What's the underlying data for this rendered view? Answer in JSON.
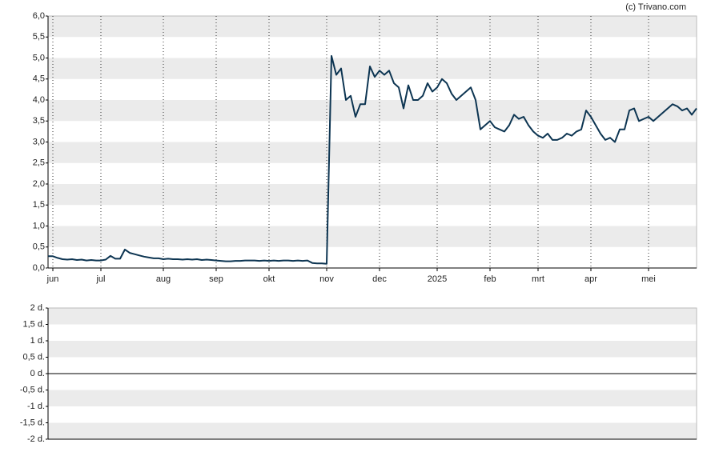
{
  "watermark": "(c) Trivano.com",
  "chart_data": [
    {
      "type": "line",
      "color": "#0d3552",
      "grid": true,
      "ylim": [
        0,
        6
      ],
      "yticks": [
        {
          "value": 0,
          "label": "0,0"
        },
        {
          "value": 0.5,
          "label": "0,5"
        },
        {
          "value": 1,
          "label": "1,0"
        },
        {
          "value": 1.5,
          "label": "1,5"
        },
        {
          "value": 2,
          "label": "2,0"
        },
        {
          "value": 2.5,
          "label": "2,5"
        },
        {
          "value": 3,
          "label": "3,0"
        },
        {
          "value": 3.5,
          "label": "3,5"
        },
        {
          "value": 4,
          "label": "4,0"
        },
        {
          "value": 4.5,
          "label": "4,5"
        },
        {
          "value": 5,
          "label": "5,0"
        },
        {
          "value": 5.5,
          "label": "5,5"
        },
        {
          "value": 6,
          "label": "6,0"
        }
      ],
      "categories": [
        null,
        "jun",
        null,
        null,
        null,
        null,
        null,
        null,
        null,
        null,
        null,
        "jul",
        null,
        null,
        null,
        null,
        null,
        null,
        null,
        null,
        null,
        null,
        null,
        null,
        "aug",
        null,
        null,
        null,
        null,
        null,
        null,
        null,
        null,
        null,
        null,
        "sep",
        null,
        null,
        null,
        null,
        null,
        null,
        null,
        null,
        null,
        null,
        "okt",
        null,
        null,
        null,
        null,
        null,
        null,
        null,
        null,
        null,
        null,
        null,
        "nov",
        null,
        null,
        null,
        null,
        null,
        null,
        null,
        null,
        null,
        null,
        "dec",
        null,
        null,
        null,
        null,
        null,
        null,
        null,
        null,
        null,
        null,
        null,
        "2025",
        null,
        null,
        null,
        null,
        null,
        null,
        null,
        null,
        null,
        null,
        "feb",
        null,
        null,
        null,
        null,
        null,
        null,
        null,
        null,
        null,
        "mrt",
        null,
        null,
        null,
        null,
        null,
        null,
        null,
        null,
        null,
        null,
        "apr",
        null,
        null,
        null,
        null,
        null,
        null,
        null,
        null,
        null,
        null,
        null,
        "mei",
        null,
        null,
        null,
        null,
        null,
        null,
        null,
        null,
        null,
        null
      ],
      "values": [
        0.28,
        0.28,
        0.24,
        0.21,
        0.2,
        0.21,
        0.19,
        0.2,
        0.18,
        0.19,
        0.18,
        0.18,
        0.2,
        0.29,
        0.22,
        0.22,
        0.44,
        0.36,
        0.33,
        0.3,
        0.27,
        0.25,
        0.23,
        0.23,
        0.21,
        0.22,
        0.21,
        0.21,
        0.2,
        0.21,
        0.2,
        0.21,
        0.19,
        0.2,
        0.19,
        0.18,
        0.17,
        0.16,
        0.16,
        0.17,
        0.17,
        0.18,
        0.18,
        0.18,
        0.17,
        0.18,
        0.17,
        0.18,
        0.17,
        0.18,
        0.18,
        0.17,
        0.18,
        0.17,
        0.18,
        0.12,
        0.11,
        0.11,
        0.1,
        5.05,
        4.6,
        4.75,
        4.0,
        4.1,
        3.6,
        3.9,
        3.9,
        4.8,
        4.55,
        4.7,
        4.6,
        4.7,
        4.4,
        4.3,
        3.8,
        4.35,
        4.0,
        4.0,
        4.1,
        4.4,
        4.2,
        4.3,
        4.5,
        4.4,
        4.15,
        4.0,
        4.1,
        4.2,
        4.3,
        4.0,
        3.3,
        3.4,
        3.5,
        3.35,
        3.3,
        3.25,
        3.4,
        3.65,
        3.55,
        3.6,
        3.4,
        3.25,
        3.15,
        3.1,
        3.2,
        3.05,
        3.05,
        3.1,
        3.2,
        3.15,
        3.25,
        3.3,
        3.75,
        3.6,
        3.4,
        3.2,
        3.05,
        3.1,
        3.0,
        3.3,
        3.3,
        3.75,
        3.8,
        3.5,
        3.55,
        3.6,
        3.5,
        3.6,
        3.7,
        3.8,
        3.9,
        3.85,
        3.75,
        3.8,
        3.65,
        3.8
      ]
    },
    {
      "type": "line",
      "grid": true,
      "ylim": [
        -2,
        2
      ],
      "yticks": [
        {
          "value": -2,
          "label": "-2 d."
        },
        {
          "value": -1.5,
          "label": "-1,5 d."
        },
        {
          "value": -1,
          "label": "-1 d."
        },
        {
          "value": -0.5,
          "label": "-0,5 d."
        },
        {
          "value": 0,
          "label": "0 d."
        },
        {
          "value": 0.5,
          "label": "0,5 d."
        },
        {
          "value": 1,
          "label": "1 d."
        },
        {
          "value": 1.5,
          "label": "1,5 d."
        },
        {
          "value": 2,
          "label": "2 d."
        }
      ]
    }
  ]
}
